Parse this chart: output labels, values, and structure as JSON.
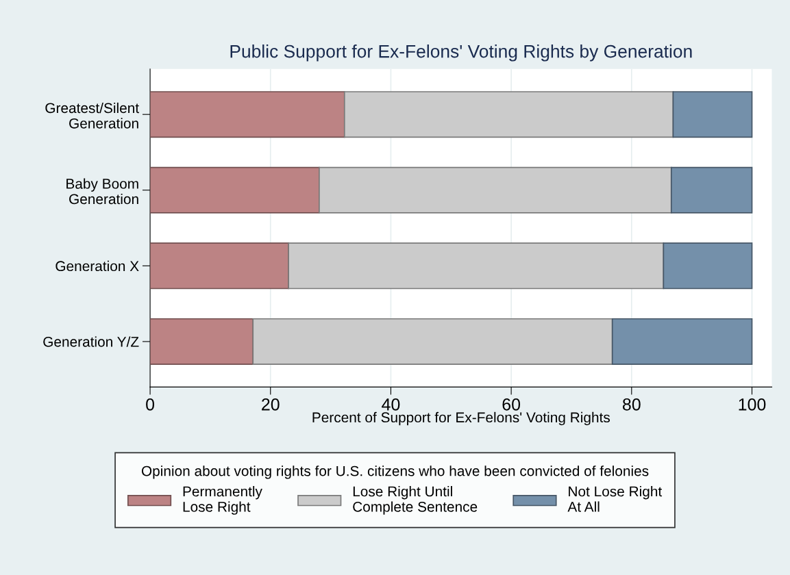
{
  "chart_data": {
    "type": "bar",
    "orientation": "horizontal",
    "stacked": true,
    "title": "Public Support for Ex-Felons' Voting Rights by Generation",
    "xlabel": "Percent of Support for Ex-Felons' Voting Rights",
    "legend_title": "Opinion about voting rights for U.S. citizens who have been convicted of felonies",
    "categories": [
      "Greatest/Silent\nGeneration",
      "Baby Boom\nGeneration",
      "Generation X",
      "Generation Y/Z"
    ],
    "series": [
      {
        "name": "Permanently\nLose Right",
        "color": "#bc8384",
        "values": [
          32.3,
          28.1,
          23.0,
          17.1
        ]
      },
      {
        "name": "Lose Right Until\nComplete Sentence",
        "color": "#cbcbcb",
        "values": [
          54.6,
          58.5,
          62.3,
          59.7
        ]
      },
      {
        "name": "Not Lose Right\nAt All",
        "color": "#7490aa",
        "values": [
          13.1,
          13.4,
          14.7,
          23.2
        ]
      }
    ],
    "xlim": [
      0,
      103.3
    ],
    "xticks": [
      0,
      20,
      40,
      60,
      80,
      100
    ],
    "grid": "x",
    "legend": "bottom"
  }
}
